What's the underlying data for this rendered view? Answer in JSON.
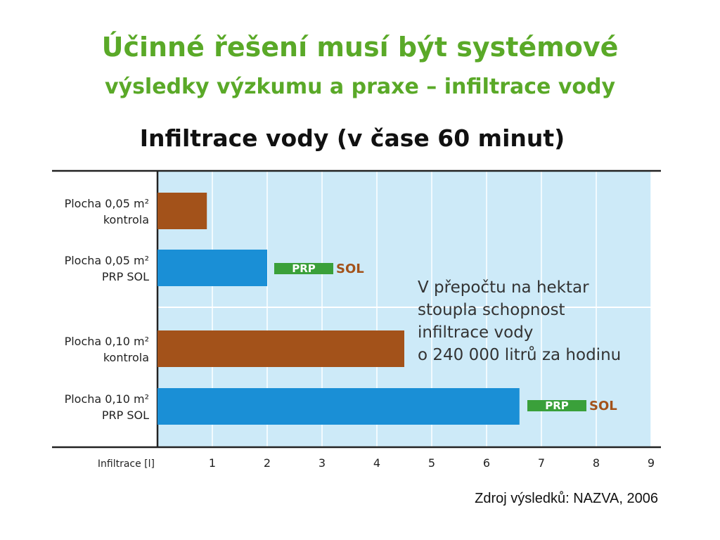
{
  "slide": {
    "title": "Účinné řešení musí být systémové",
    "subtitle": "výsledky výzkumu a praxe – infiltrace vody",
    "source": "Zdroj výsledků: NAZVA, 2006"
  },
  "chart_data": {
    "type": "bar",
    "orientation": "horizontal",
    "title": "Infiltrace vody (v čase 60 minut)",
    "xlabel": "Infiltrace [l]",
    "xlim": [
      0,
      9
    ],
    "x_ticks": [
      1,
      2,
      3,
      4,
      5,
      6,
      7,
      8,
      9
    ],
    "grid": true,
    "categories": [
      {
        "line1": "Plocha 0,05 m²",
        "line2": "kontrola"
      },
      {
        "line1": "Plocha 0,05 m²",
        "line2": "PRP SOL"
      },
      {
        "line1": "Plocha 0,10 m²",
        "line2": "kontrola"
      },
      {
        "line1": "Plocha 0,10 m²",
        "line2": "PRP SOL"
      }
    ],
    "values": [
      0.9,
      2.0,
      4.5,
      6.6
    ],
    "bar_colors": [
      "#a3521a",
      "#1a8fd6",
      "#a3521a",
      "#1a8fd6"
    ],
    "plot_background": "#cdeaf8",
    "logo": {
      "part1": "PRP",
      "part2": "SOL",
      "color1": "#3aa03a",
      "color2": "#a3521a"
    },
    "annotation": [
      "V přepočtu na hektar",
      "stoupla schopnost",
      "infiltrace vody",
      "o 240 000 litrů za hodinu"
    ]
  }
}
